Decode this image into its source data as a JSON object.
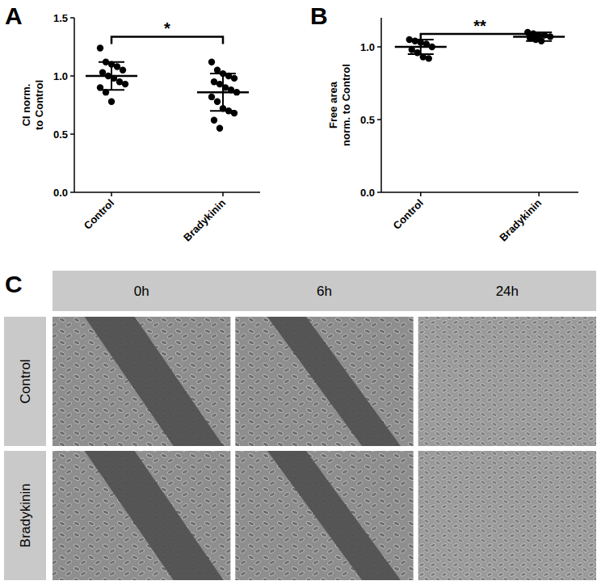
{
  "chart_data": [
    {
      "type": "scatter",
      "panel": "A",
      "y_label": "CI norm. to Control",
      "categories": [
        "Control",
        "Bradykinin"
      ],
      "values": [
        [
          1.24,
          1.12,
          1.1,
          1.08,
          1.05,
          1.03,
          1.0,
          0.98,
          0.95,
          0.93,
          0.9,
          0.86,
          0.78
        ],
        [
          1.12,
          1.05,
          1.02,
          1.0,
          0.98,
          0.95,
          0.93,
          0.9,
          0.88,
          0.86,
          0.82,
          0.78,
          0.72,
          0.7,
          0.68,
          0.62,
          0.55
        ]
      ],
      "mean": [
        1.0,
        0.86
      ],
      "sd": [
        0.12,
        0.16
      ],
      "annotation": "*",
      "ylim": [
        0,
        1.5
      ],
      "yticks": [
        {
          "value": 0,
          "label": "0.0"
        },
        {
          "value": 0.5,
          "label": "0.5"
        },
        {
          "value": 1,
          "label": "1.0"
        },
        {
          "value": 1.5,
          "label": "1.5"
        }
      ],
      "color": "#000000",
      "marker": "circle"
    },
    {
      "type": "scatter",
      "panel": "B",
      "y_label": "Free area norm. to Control",
      "categories": [
        "Control",
        "Bradykinin"
      ],
      "values": [
        [
          1.05,
          1.04,
          1.03,
          1.02,
          1.0,
          0.98,
          0.96,
          0.93,
          0.92
        ],
        [
          1.1,
          1.09,
          1.08,
          1.08,
          1.07,
          1.06,
          1.05,
          1.04
        ]
      ],
      "mean": [
        1.0,
        1.07
      ],
      "sd": [
        0.05,
        0.03
      ],
      "annotation": "**",
      "ylim": [
        0,
        1.2
      ],
      "yticks": [
        {
          "value": 0,
          "label": "0.0"
        },
        {
          "value": 0.5,
          "label": "0.5"
        },
        {
          "value": 1,
          "label": "1.0"
        }
      ],
      "color": "#000000",
      "marker": "circle"
    }
  ],
  "image_grid": {
    "panel": "C",
    "columns": [
      "0h",
      "6h",
      "24h"
    ],
    "rows": [
      "Control",
      "Bradykinin"
    ]
  }
}
